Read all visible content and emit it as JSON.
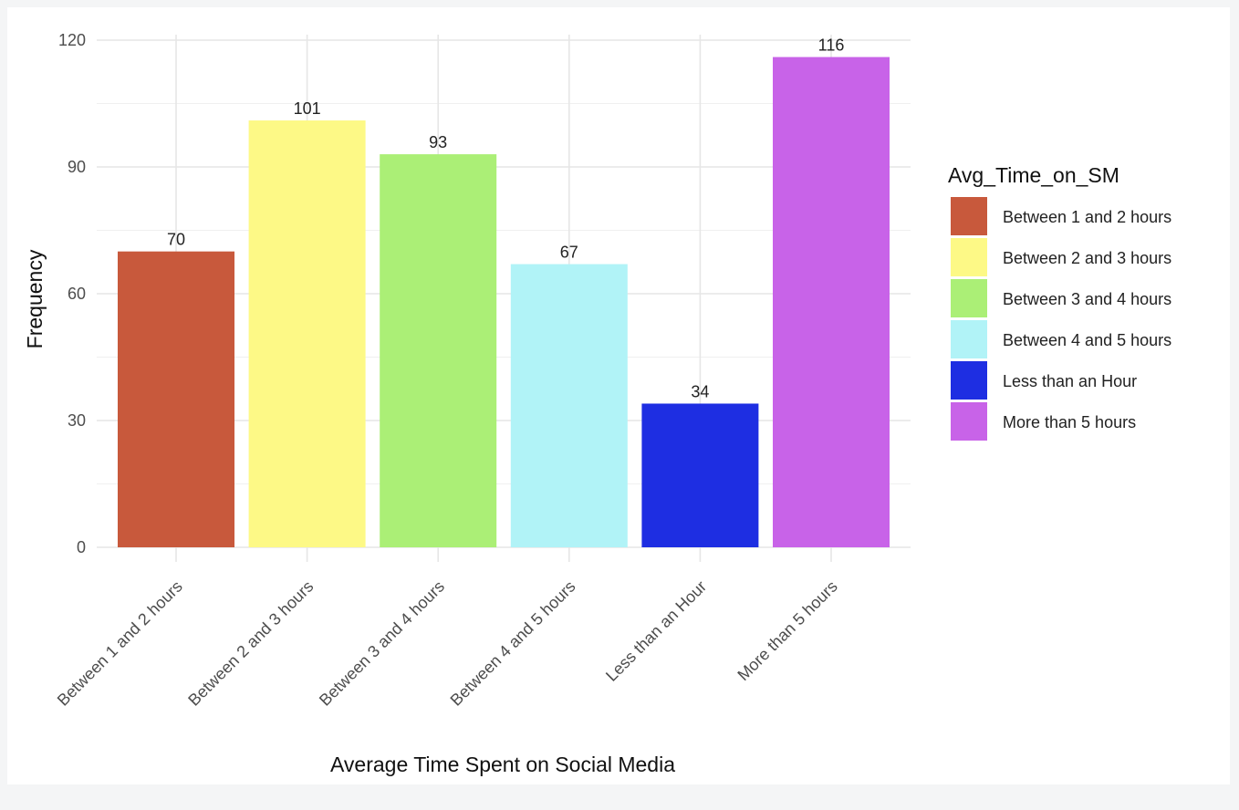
{
  "chart_data": {
    "type": "bar",
    "categories": [
      "Between 1 and 2 hours",
      "Between 2 and 3 hours",
      "Between 3 and 4 hours",
      "Between 4 and 5 hours",
      "Less than an Hour",
      "More than 5 hours"
    ],
    "values": [
      70,
      101,
      93,
      67,
      34,
      116
    ],
    "colors": [
      "#c8593c",
      "#fdf986",
      "#abef76",
      "#b1f3f7",
      "#1e2ee2",
      "#c863e8"
    ],
    "xlabel": "Average Time Spent on Social Media",
    "ylabel": "Frequency",
    "ylim": [
      0,
      120
    ],
    "yticks": [
      0,
      30,
      60,
      90,
      120
    ],
    "grid": true,
    "data_labels": true,
    "legend": {
      "title": "Avg_Time_on_SM",
      "placement": "right",
      "entries": [
        "Between 1 and 2 hours",
        "Between 2 and 3 hours",
        "Between 3 and 4 hours",
        "Between 4 and 5 hours",
        "Less than an Hour",
        "More than 5 hours"
      ]
    }
  }
}
